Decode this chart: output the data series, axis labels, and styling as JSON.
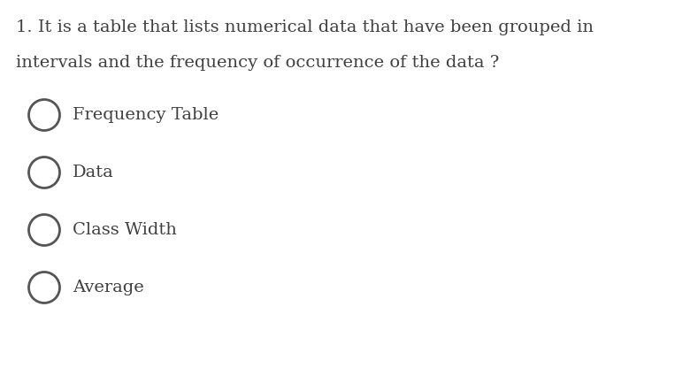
{
  "background_color": "#ffffff",
  "question_text_line1": "1. It is a table that lists numerical data that have been grouped in",
  "question_text_line2": "intervals and the frequency of occurrence of the data ?",
  "options": [
    "Frequency Table",
    "Data",
    "Class Width",
    "Average"
  ],
  "text_color": "#404040",
  "circle_color": "#555555",
  "question_fontsize": 14.0,
  "option_fontsize": 14.0,
  "fig_width": 7.63,
  "fig_height": 4.16,
  "dpi": 100
}
